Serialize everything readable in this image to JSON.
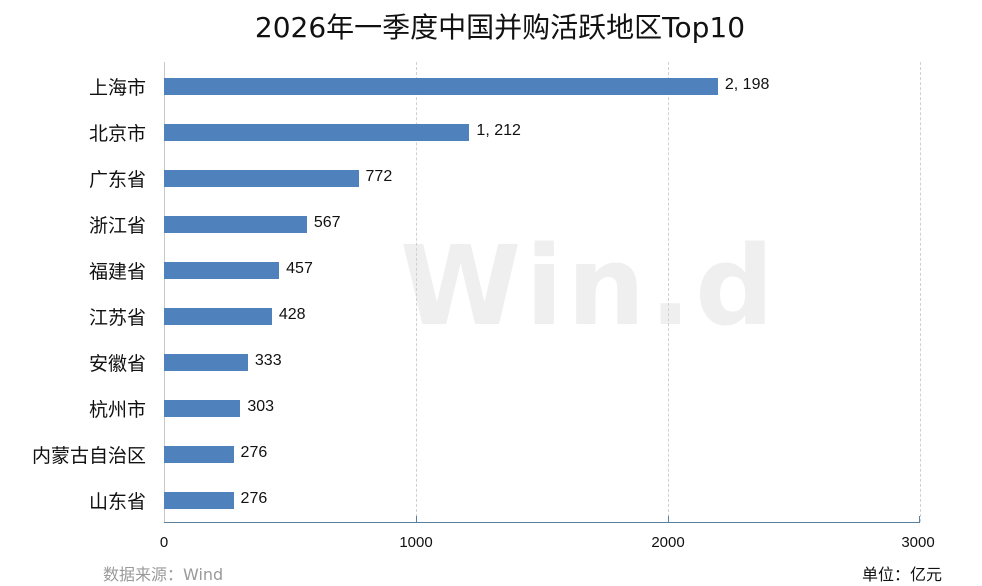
{
  "title": "2026年一季度中国并购活跃地区Top10",
  "watermark": "Win.d",
  "source": "数据来源：Wind",
  "unit": "单位：亿元",
  "colors": {
    "bar": "#4f81bd",
    "axis": "#5b7f9c",
    "grid": "#d0d0d0"
  },
  "chart_data": {
    "type": "bar",
    "orientation": "horizontal",
    "title": "2026年一季度中国并购活跃地区Top10",
    "xlabel": "",
    "ylabel": "",
    "unit": "亿元",
    "xlim": [
      0,
      3000
    ],
    "xticks": [
      0,
      1000,
      2000,
      3000
    ],
    "grid": "vertical dashed",
    "legend": "none",
    "categories": [
      "上海市",
      "北京市",
      "广东省",
      "浙江省",
      "福建省",
      "江苏省",
      "安徽省",
      "杭州市",
      "内蒙古自治区",
      "山东省"
    ],
    "values": [
      2198,
      1212,
      772,
      567,
      457,
      428,
      333,
      303,
      276,
      276
    ],
    "labels": [
      "2, 198",
      "1, 212",
      "772",
      "567",
      "457",
      "428",
      "333",
      "303",
      "276",
      "276"
    ]
  }
}
